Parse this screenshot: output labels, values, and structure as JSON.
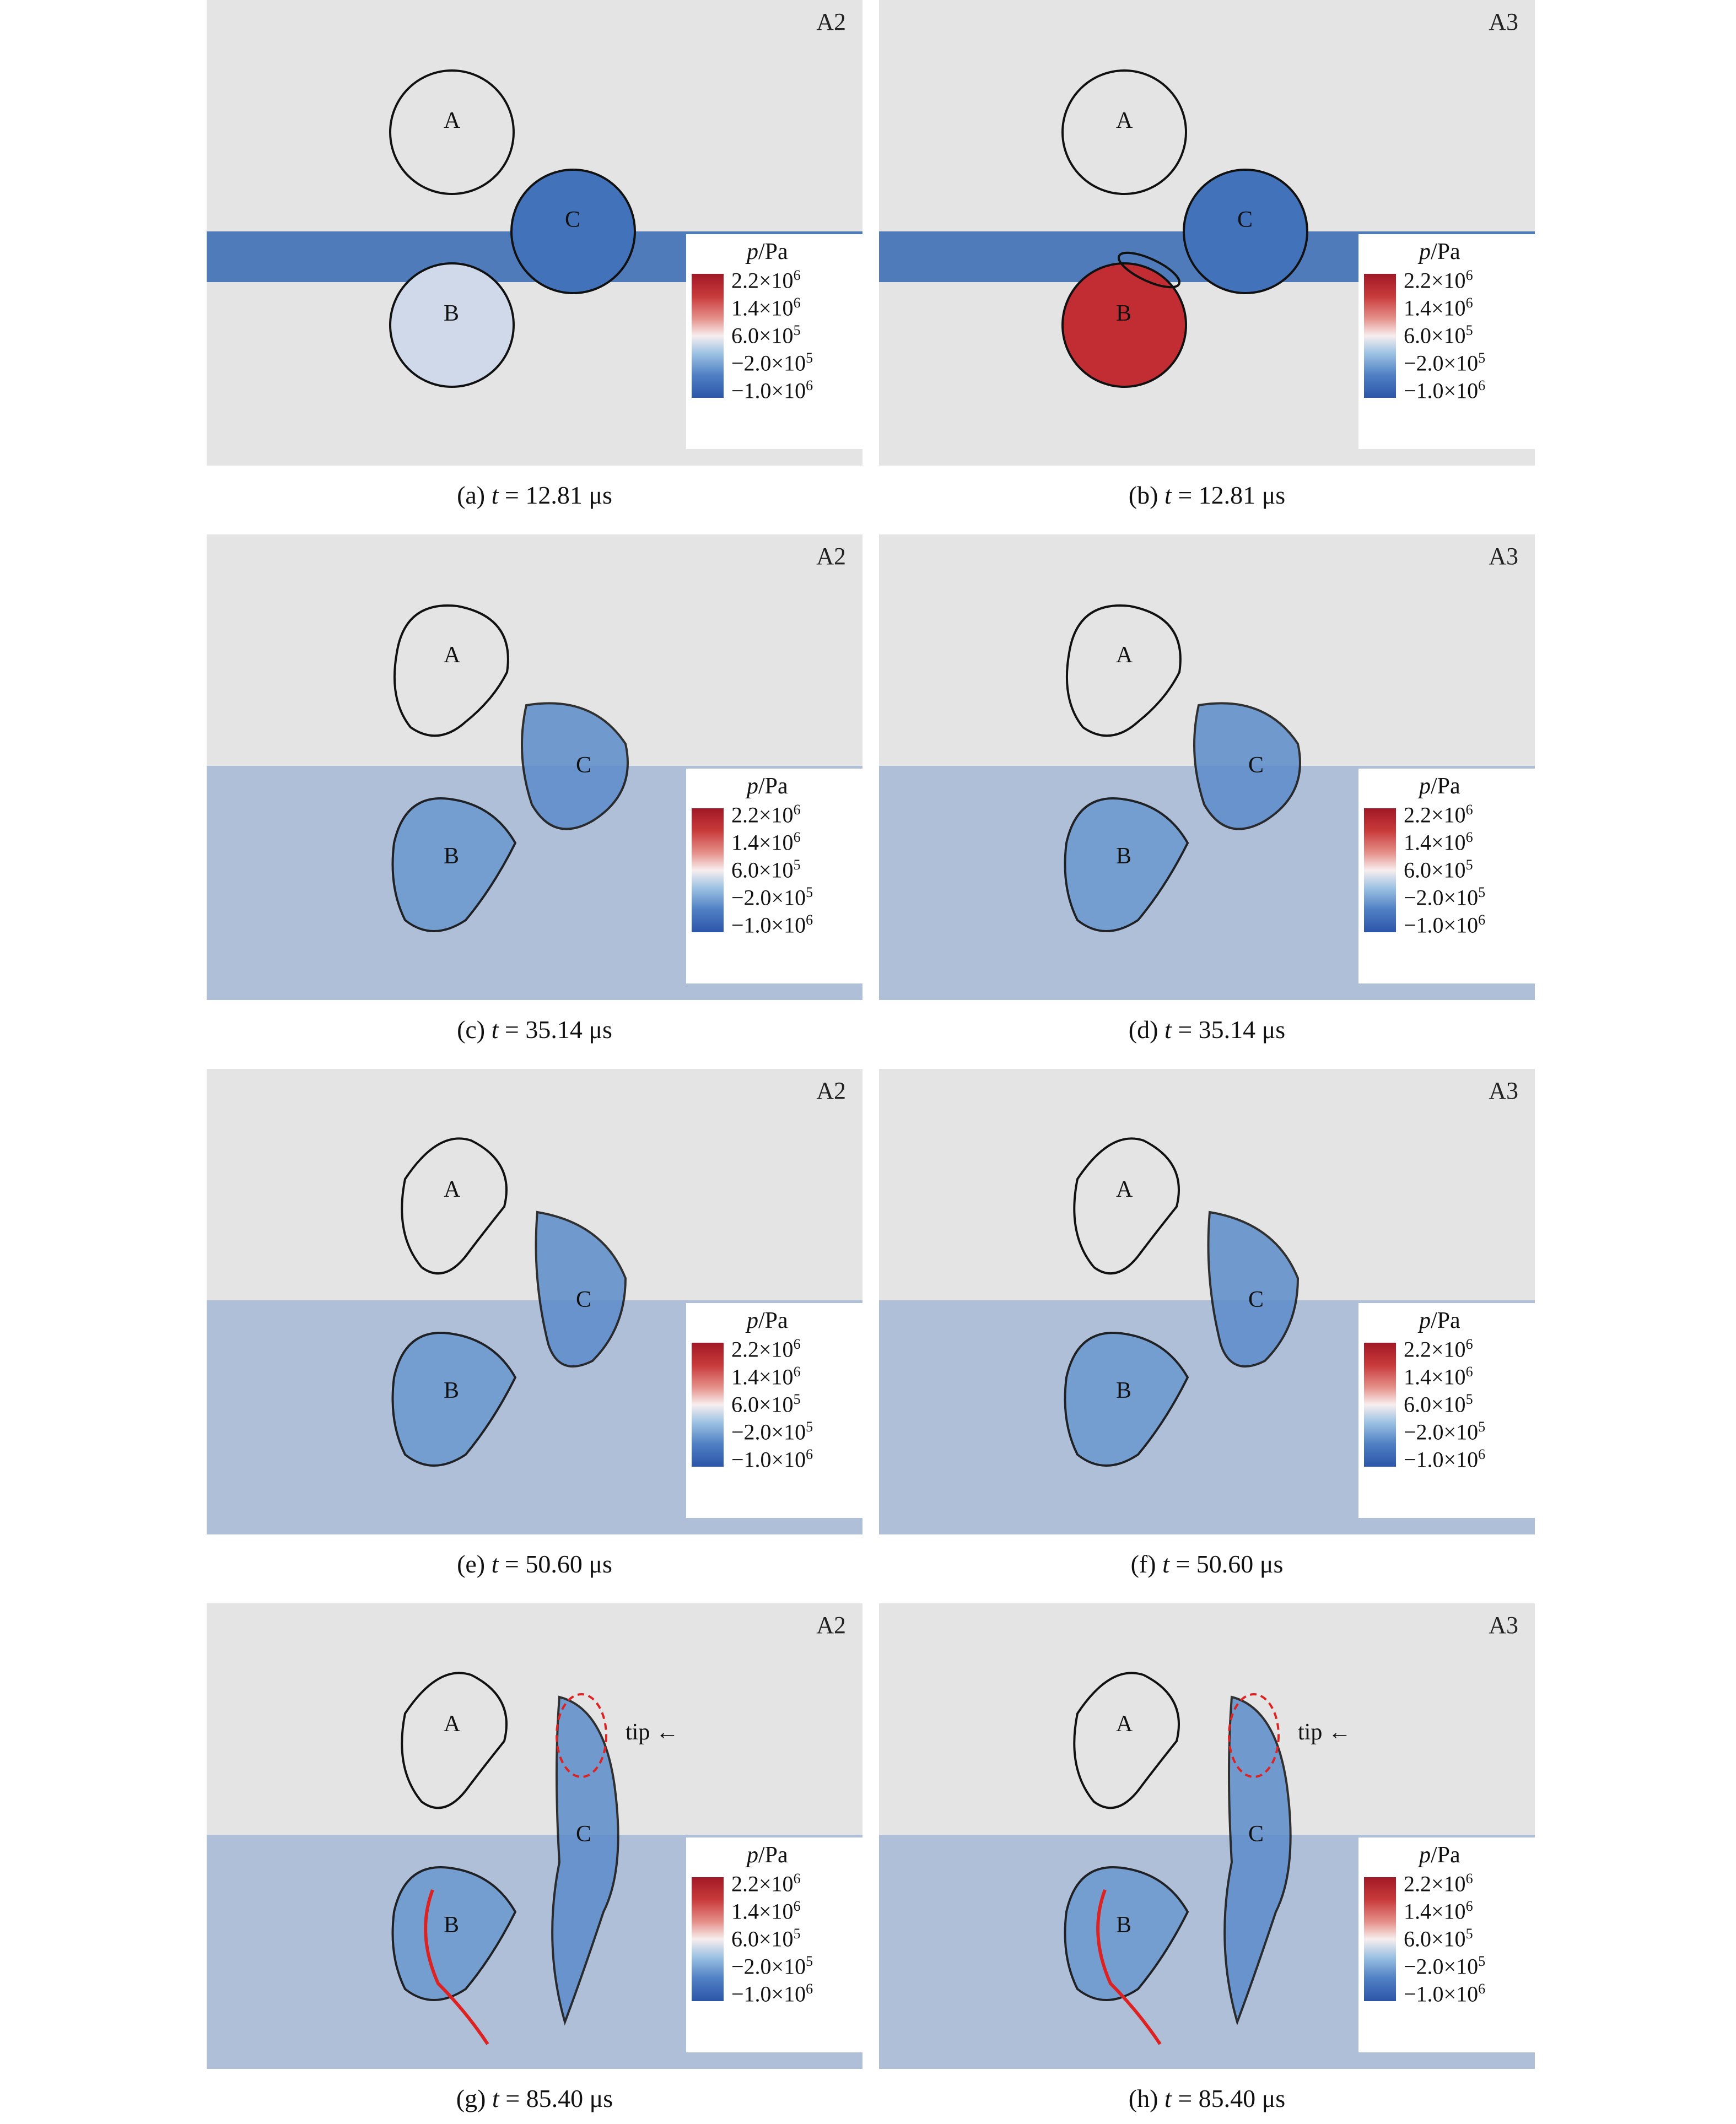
{
  "colorbar": {
    "title_var": "p",
    "title_unit": "/Pa",
    "ticks": [
      {
        "mant": "2.2×10",
        "exp": "6"
      },
      {
        "mant": "1.4×10",
        "exp": "6"
      },
      {
        "mant": "6.0×10",
        "exp": "5"
      },
      {
        "mant": "−2.0×10",
        "exp": "5"
      },
      {
        "mant": "−1.0×10",
        "exp": "6"
      }
    ],
    "colors": {
      "high": "#a11826",
      "mid": "#f7eeee",
      "low": "#2c55a8"
    }
  },
  "panels": [
    {
      "letter": "(a)",
      "case": "A2",
      "time": "12.81",
      "unit": "μs",
      "stage": 0
    },
    {
      "letter": "(b)",
      "case": "A3",
      "time": "12.81",
      "unit": "μs",
      "stage": 0
    },
    {
      "letter": "(c)",
      "case": "A2",
      "time": "35.14",
      "unit": "μs",
      "stage": 1
    },
    {
      "letter": "(d)",
      "case": "A3",
      "time": "35.14",
      "unit": "μs",
      "stage": 1
    },
    {
      "letter": "(e)",
      "case": "A2",
      "time": "50.60",
      "unit": "μs",
      "stage": 2
    },
    {
      "letter": "(f)",
      "case": "A3",
      "time": "50.60",
      "unit": "μs",
      "stage": 2
    },
    {
      "letter": "(g)",
      "case": "A2",
      "time": "85.40",
      "unit": "μs",
      "stage": 3
    },
    {
      "letter": "(h)",
      "case": "A3",
      "time": "85.40",
      "unit": "μs",
      "stage": 3
    }
  ],
  "droplet_labels": [
    "A",
    "B",
    "C"
  ],
  "annotation": "tip",
  "time_var": "t"
}
